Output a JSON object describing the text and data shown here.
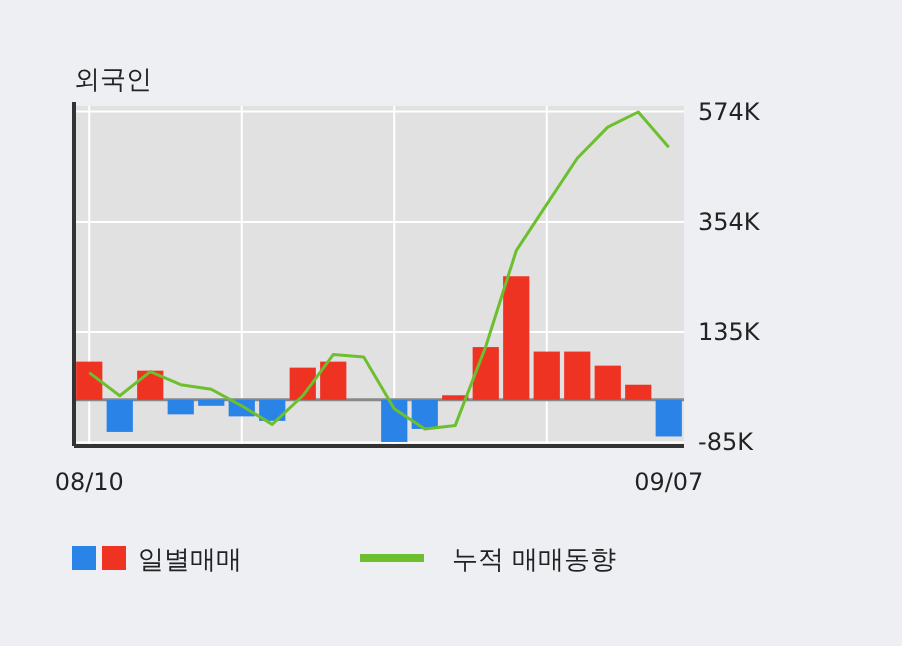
{
  "chart_data": {
    "type": "bar",
    "title": "외국인",
    "categories": [
      "08/10",
      null,
      null,
      null,
      null,
      null,
      null,
      null,
      null,
      null,
      null,
      null,
      null,
      null,
      null,
      null,
      null,
      null,
      null,
      "09/07"
    ],
    "series": [
      {
        "name": "일별매매",
        "colors": [
          "#ee3322",
          "#2a84e8",
          "#ee3322",
          "#2a84e8",
          "#2a84e8",
          "#2a84e8",
          "#2a84e8",
          "#ee3322",
          "#ee3322",
          "#ee3322",
          "#2a84e8",
          "#2a84e8",
          "#ee3322",
          "#ee3322",
          "#ee3322",
          "#ee3322",
          "#ee3322",
          "#ee3322",
          "#ee3322",
          "#2a84e8"
        ],
        "values": [
          76,
          -64,
          58,
          -29,
          -12,
          -33,
          -42,
          64,
          76,
          0,
          -84,
          -58,
          9,
          105,
          246,
          96,
          96,
          68,
          30,
          -73
        ]
      },
      {
        "name": "누적 매매동향",
        "type": "line",
        "color": "#6cbf2e",
        "values": [
          54,
          8,
          56,
          30,
          21,
          -12,
          -49,
          8,
          90,
          85,
          -18,
          -58,
          -51,
          106,
          297,
          389,
          481,
          543,
          573,
          503
        ]
      }
    ],
    "ylim": [
      -92,
      585
    ],
    "yticks": [
      {
        "value": -85,
        "label": "-85K"
      },
      {
        "value": 135,
        "label": "135K"
      },
      {
        "value": 354,
        "label": "354K"
      },
      {
        "value": 574,
        "label": "574K"
      }
    ],
    "grid": true,
    "legend": "bottom"
  }
}
